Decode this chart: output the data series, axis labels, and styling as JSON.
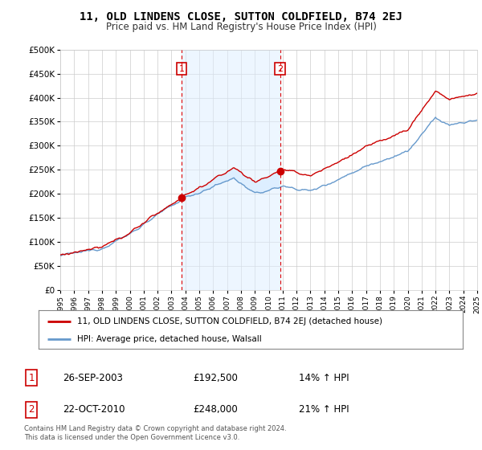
{
  "title": "11, OLD LINDENS CLOSE, SUTTON COLDFIELD, B74 2EJ",
  "subtitle": "Price paid vs. HM Land Registry's House Price Index (HPI)",
  "legend_line1": "11, OLD LINDENS CLOSE, SUTTON COLDFIELD, B74 2EJ (detached house)",
  "legend_line2": "HPI: Average price, detached house, Walsall",
  "transaction1_date": "26-SEP-2003",
  "transaction1_price": "£192,500",
  "transaction1_hpi": "14% ↑ HPI",
  "transaction2_date": "22-OCT-2010",
  "transaction2_price": "£248,000",
  "transaction2_hpi": "21% ↑ HPI",
  "footnote": "Contains HM Land Registry data © Crown copyright and database right 2024.\nThis data is licensed under the Open Government Licence v3.0.",
  "red_color": "#cc0000",
  "blue_color": "#6699cc",
  "shading_color": "#ddeeff",
  "vline_color": "#dd0000",
  "background_color": "#ffffff",
  "grid_color": "#cccccc",
  "ylim": [
    0,
    500000
  ],
  "yticks": [
    0,
    50000,
    100000,
    150000,
    200000,
    250000,
    300000,
    350000,
    400000,
    450000,
    500000
  ],
  "transaction1_x": 2003.74,
  "transaction1_y": 192500,
  "transaction2_x": 2010.81,
  "transaction2_y": 248000,
  "xmin": 1995,
  "xmax": 2025
}
